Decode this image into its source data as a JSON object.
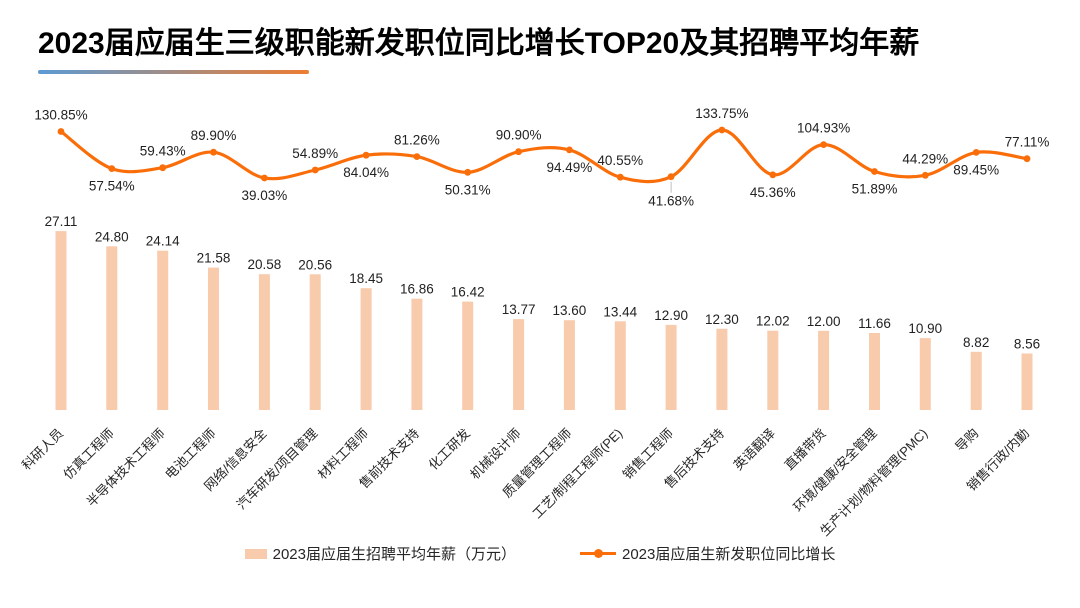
{
  "header": {
    "title": "2023届应届生三级职能新发职位同比增长TOP20及其招聘平均年薪"
  },
  "colors": {
    "bar_fill": "#F8CBAD",
    "line_stroke": "#FA6E0A",
    "label_text": "#222222",
    "axis_label_text": "#262626",
    "leader_line": "#BFBFBF",
    "underline_gradient_start": "#5B9BD5",
    "underline_gradient_end": "#ED7D31"
  },
  "chart_data": {
    "type": "combo",
    "title": "2023届应届生三级职能新发职位同比增长TOP20及其招聘平均年薪",
    "categories": [
      "科研人员",
      "仿真工程师",
      "半导体技术工程师",
      "电池工程师",
      "网络/信息安全",
      "汽车研发/项目管理",
      "材料工程师",
      "售前技术支持",
      "化工研发",
      "机械设计师",
      "质量管理工程师",
      "工艺/制程工程师(PE)",
      "销售工程师",
      "售后技术支持",
      "英语翻译",
      "直播带货",
      "环境/健康/安全管理",
      "生产计划/物料管理(PMC)",
      "导购",
      "销售行政/内勤"
    ],
    "series": [
      {
        "name": "2023届应届生招聘平均年薪（万元）",
        "type": "bar",
        "unit": "万元",
        "color": "#F8CBAD",
        "values": [
          27.11,
          24.8,
          24.14,
          21.58,
          20.58,
          20.56,
          18.45,
          16.86,
          16.42,
          13.77,
          13.6,
          13.44,
          12.9,
          12.3,
          12.02,
          12.0,
          11.66,
          10.9,
          8.82,
          8.56
        ]
      },
      {
        "name": "2023届应届生新发职位同比增长",
        "type": "line",
        "unit": "%",
        "color": "#FA6E0A",
        "values": [
          130.85,
          57.54,
          59.43,
          89.9,
          39.03,
          54.89,
          84.04,
          81.26,
          50.31,
          90.9,
          94.49,
          40.55,
          41.68,
          133.75,
          45.36,
          104.93,
          51.89,
          44.29,
          89.45,
          77.11
        ],
        "label_positions": [
          "above",
          "below",
          "above",
          "above",
          "below",
          "above",
          "below",
          "above",
          "below",
          "above",
          "below",
          "above",
          "below-far",
          "above",
          "below",
          "above",
          "below",
          "above",
          "below",
          "above"
        ]
      }
    ],
    "legend_position": "bottom",
    "grid": false,
    "axes_visible": false,
    "value_labels_shown": true,
    "x_label_rotation": -45
  },
  "legend": {
    "items": [
      {
        "label": "2023届应届生招聘平均年薪（万元）",
        "swatch": "bar",
        "color": "#F8CBAD"
      },
      {
        "label": "2023届应届生新发职位同比增长",
        "swatch": "line",
        "color": "#FA6E0A"
      }
    ]
  }
}
